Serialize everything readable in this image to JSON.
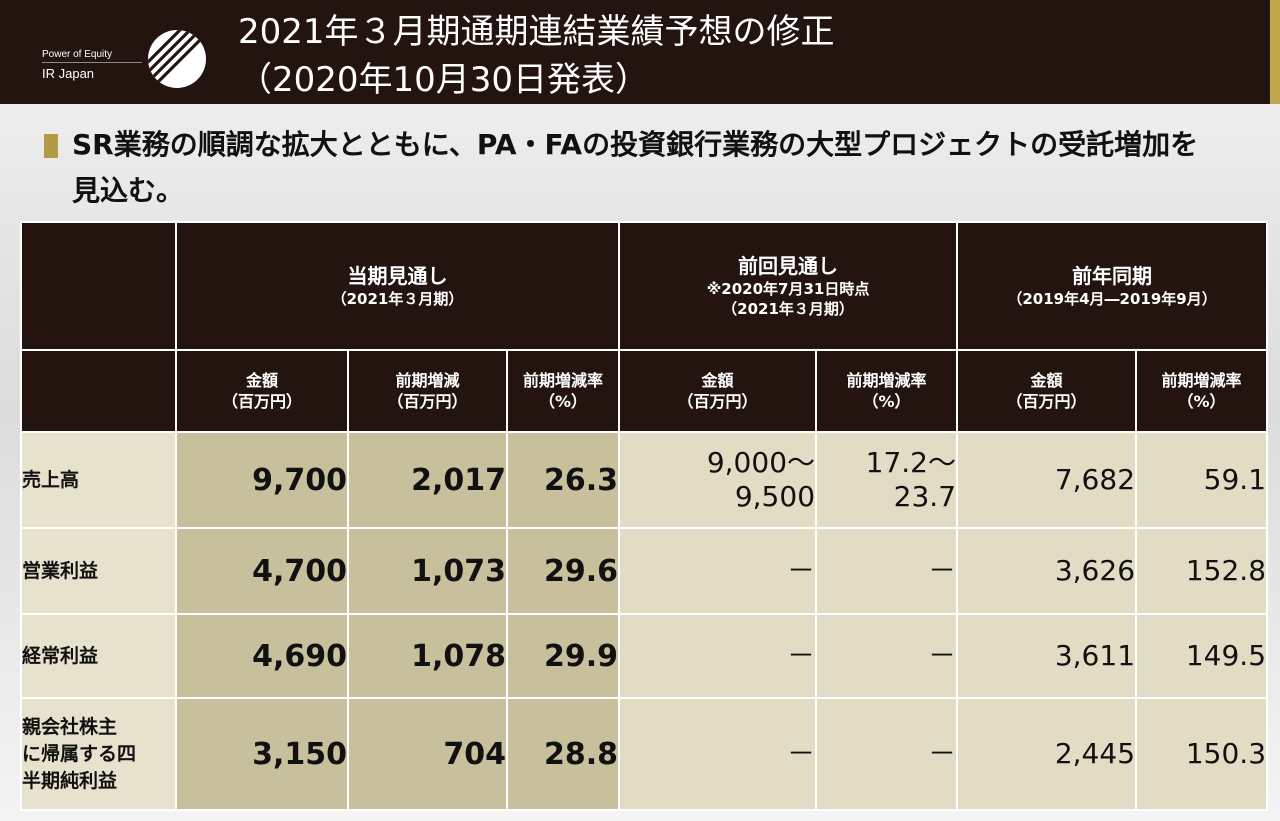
{
  "header": {
    "brand_small": "Power of Equity",
    "brand_main": "IR Japan",
    "title_line1": "2021年３月期通期連結業績予想の修正",
    "title_line2": "（2020年10月30日発表）"
  },
  "subtitle": "SR業務の順調な拡大とともに、PA・FAの投資銀行業務の大型プロジェクトの受託増加を見込む。",
  "colors": {
    "header_bg": "#24140f",
    "accent_gold": "#b49a46",
    "current_cell": "#c8bf9d",
    "other_cell": "#e3dcc4"
  },
  "table": {
    "groups": [
      {
        "title": "当期見通し",
        "sub1": "（2021年３月期）",
        "sub2": ""
      },
      {
        "title": "前回見通し",
        "sub1": "※2020年7月31日時点",
        "sub2": "（2021年３月期）"
      },
      {
        "title": "前年同期",
        "sub1": "（2019年4月―2019年9月）",
        "sub2": ""
      }
    ],
    "columns": [
      {
        "l1": "金額",
        "l2": "（百万円）"
      },
      {
        "l1": "前期増減",
        "l2": "（百万円）"
      },
      {
        "l1": "前期増減率",
        "l2": "（%）"
      },
      {
        "l1": "金額",
        "l2": "（百万円）"
      },
      {
        "l1": "前期増減率",
        "l2": "（%）"
      },
      {
        "l1": "金額",
        "l2": "（百万円）"
      },
      {
        "l1": "前期増減率",
        "l2": "（%）"
      }
    ],
    "rows": [
      {
        "label": "売上高",
        "cells": [
          "9,700",
          "2,017",
          "26.3",
          "9,000～\n9,500",
          "17.2～\n23.7",
          "7,682",
          "59.1"
        ]
      },
      {
        "label": "営業利益",
        "cells": [
          "4,700",
          "1,073",
          "29.6",
          "－",
          "－",
          "3,626",
          "152.8"
        ]
      },
      {
        "label": "経常利益",
        "cells": [
          "4,690",
          "1,078",
          "29.9",
          "－",
          "－",
          "3,611",
          "149.5"
        ]
      },
      {
        "label": "親会社株主\nに帰属する四\n半期純利益",
        "cells": [
          "3,150",
          "704",
          "28.8",
          "－",
          "－",
          "2,445",
          "150.3"
        ]
      }
    ]
  }
}
